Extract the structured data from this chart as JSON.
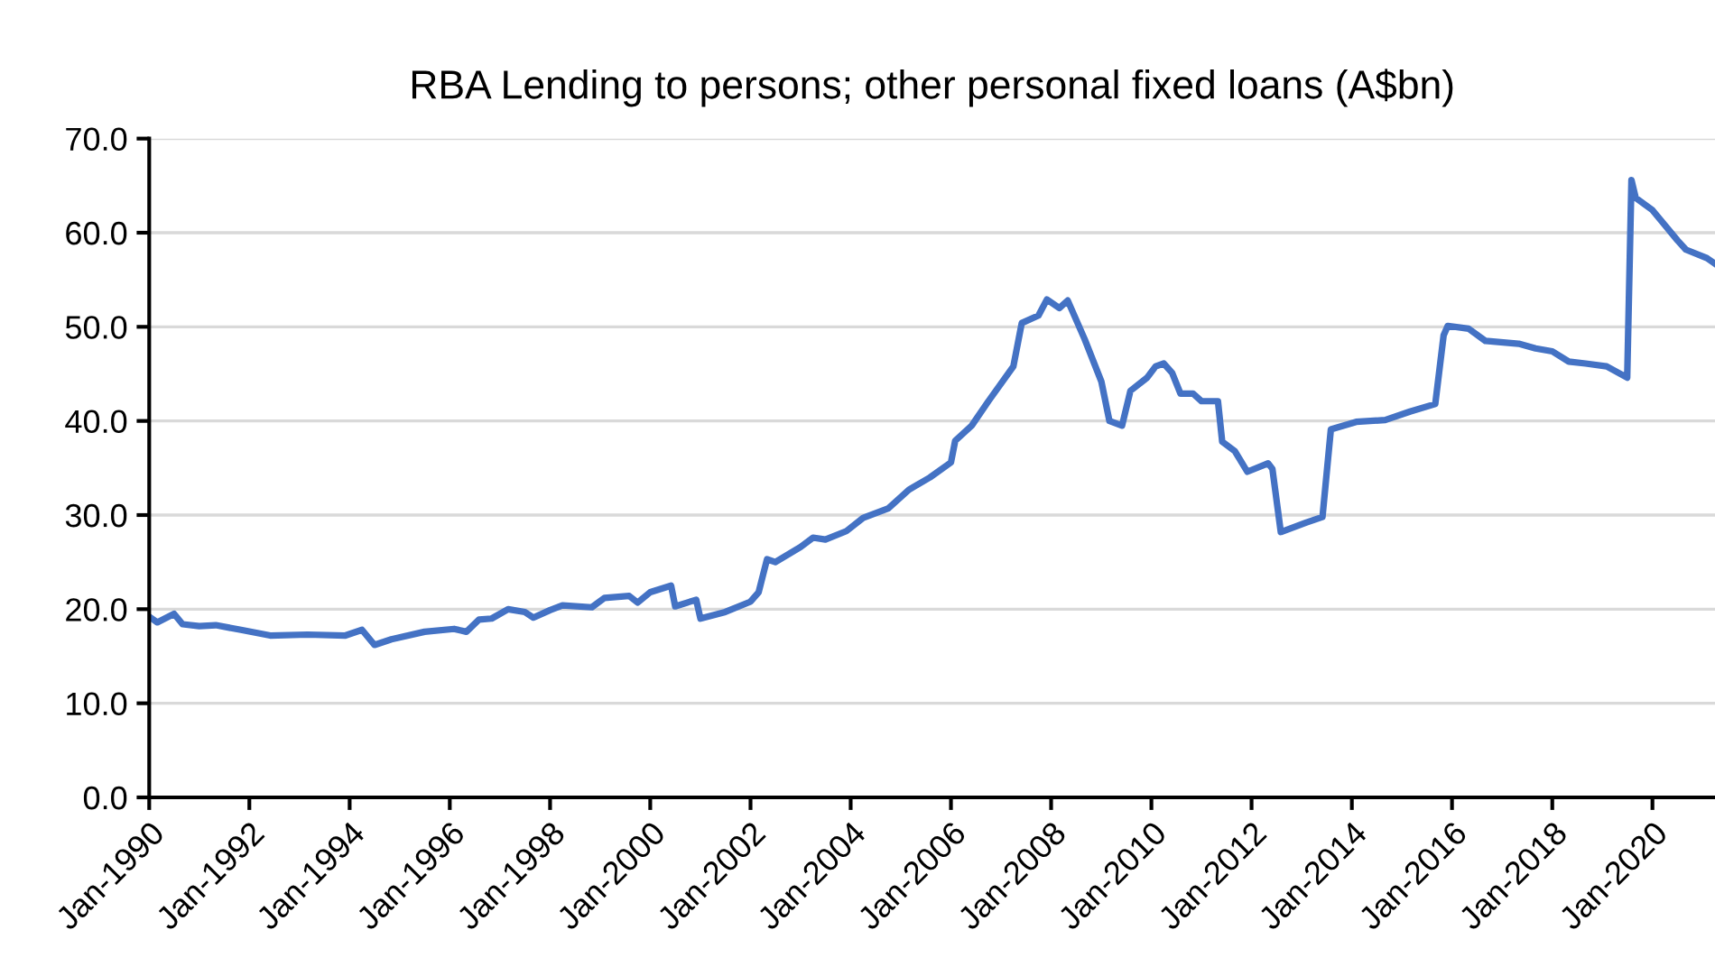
{
  "chart_data": {
    "type": "line",
    "title": "RBA Lending to persons; other personal fixed loans (A$bn)",
    "x": [
      "1990-01",
      "1990-03",
      "1990-07",
      "1990-09",
      "1991-01",
      "1991-05",
      "1991-11",
      "1992-06",
      "1993-03",
      "1993-12",
      "1994-04",
      "1994-07",
      "1994-11",
      "1995-07",
      "1996-02",
      "1996-05",
      "1996-08",
      "1996-11",
      "1997-03",
      "1997-07",
      "1997-09",
      "1998-01",
      "1998-04",
      "1998-11",
      "1999-02",
      "1999-08",
      "1999-10",
      "2000-01",
      "2000-06",
      "2000-07",
      "2000-12",
      "2001-01",
      "2001-07",
      "2002-01",
      "2002-03",
      "2002-05",
      "2002-07",
      "2003-01",
      "2003-04",
      "2003-07",
      "2003-12",
      "2004-04",
      "2004-10",
      "2005-03",
      "2005-08",
      "2006-01",
      "2006-02",
      "2006-06",
      "2006-10",
      "2007-04",
      "2007-06",
      "2007-10",
      "2007-12",
      "2008-03",
      "2008-05",
      "2008-09",
      "2009-01",
      "2009-03",
      "2009-06",
      "2009-08",
      "2009-12",
      "2010-02",
      "2010-04",
      "2010-06",
      "2010-08",
      "2010-11",
      "2011-01",
      "2011-05",
      "2011-06",
      "2011-09",
      "2011-12",
      "2012-05",
      "2012-06",
      "2012-08",
      "2013-02",
      "2013-06",
      "2013-08",
      "2014-02",
      "2014-09",
      "2015-03",
      "2015-09",
      "2015-11",
      "2015-12",
      "2016-05",
      "2016-09",
      "2017-05",
      "2017-09",
      "2018-01",
      "2018-05",
      "2018-09",
      "2019-02",
      "2019-07",
      "2019-08",
      "2019-09",
      "2020-01",
      "2020-07",
      "2020-09",
      "2021-02",
      "2021-04"
    ],
    "series": [
      {
        "color": "#4472c4",
        "values": [
          19.2,
          18.6,
          19.5,
          18.4,
          18.2,
          18.3,
          17.8,
          17.2,
          17.3,
          17.2,
          17.8,
          16.2,
          16.8,
          17.6,
          17.9,
          17.6,
          18.9,
          19.0,
          20.0,
          19.7,
          19.1,
          19.9,
          20.4,
          20.2,
          21.2,
          21.4,
          20.7,
          21.8,
          22.5,
          20.3,
          21.0,
          19.0,
          19.7,
          20.8,
          21.8,
          25.3,
          25.0,
          26.6,
          27.6,
          27.4,
          28.3,
          29.7,
          30.7,
          32.7,
          34.0,
          35.6,
          37.9,
          39.5,
          42.1,
          45.8,
          50.4,
          51.2,
          52.9,
          52.0,
          52.8,
          48.7,
          44.2,
          40.0,
          39.5,
          43.2,
          44.6,
          45.8,
          46.1,
          45.1,
          42.9,
          42.9,
          42.1,
          42.1,
          37.8,
          36.8,
          34.6,
          35.5,
          34.9,
          28.2,
          29.2,
          29.8,
          39.1,
          39.9,
          40.1,
          41.0,
          41.8,
          49.1,
          50.1,
          49.8,
          48.5,
          48.2,
          47.7,
          47.4,
          46.3,
          46.1,
          45.8,
          44.6,
          65.6,
          63.7,
          62.4,
          59.2,
          58.2,
          57.3,
          56.7
        ]
      }
    ],
    "xlim": [
      "1990-01",
      "2021-04"
    ],
    "xticks": [
      {
        "value": "1990-01",
        "label": "Jan-1990"
      },
      {
        "value": "1992-01",
        "label": "Jan-1992"
      },
      {
        "value": "1994-01",
        "label": "Jan-1994"
      },
      {
        "value": "1996-01",
        "label": "Jan-1996"
      },
      {
        "value": "1998-01",
        "label": "Jan-1998"
      },
      {
        "value": "2000-01",
        "label": "Jan-2000"
      },
      {
        "value": "2002-01",
        "label": "Jan-2002"
      },
      {
        "value": "2004-01",
        "label": "Jan-2004"
      },
      {
        "value": "2006-01",
        "label": "Jan-2006"
      },
      {
        "value": "2008-01",
        "label": "Jan-2008"
      },
      {
        "value": "2010-01",
        "label": "Jan-2010"
      },
      {
        "value": "2012-01",
        "label": "Jan-2012"
      },
      {
        "value": "2014-01",
        "label": "Jan-2014"
      },
      {
        "value": "2016-01",
        "label": "Jan-2016"
      },
      {
        "value": "2018-01",
        "label": "Jan-2018"
      },
      {
        "value": "2020-01",
        "label": "Jan-2020"
      }
    ],
    "ylim": [
      0,
      70
    ],
    "yticks": [
      {
        "value": 0,
        "label": "0.0"
      },
      {
        "value": 10,
        "label": "10.0"
      },
      {
        "value": 20,
        "label": "20.0"
      },
      {
        "value": 30,
        "label": "30.0"
      },
      {
        "value": 40,
        "label": "40.0"
      },
      {
        "value": 50,
        "label": "50.0"
      },
      {
        "value": 60,
        "label": "60.0"
      },
      {
        "value": 70,
        "label": "70.0"
      }
    ],
    "grid": "y",
    "marker": "none",
    "line_style": "solid"
  }
}
